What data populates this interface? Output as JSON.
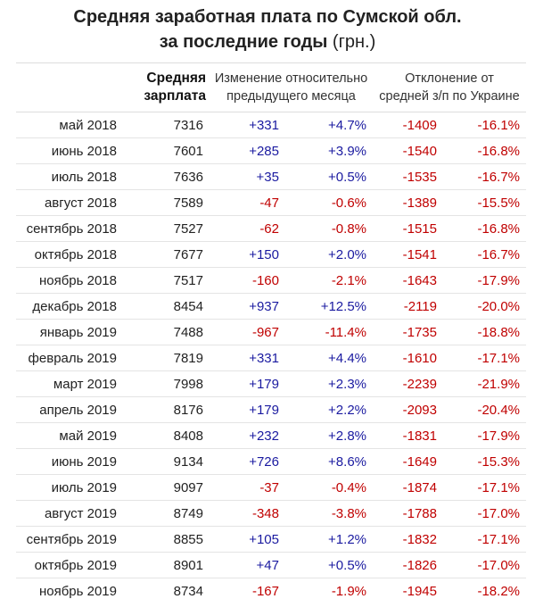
{
  "header": {
    "title": "Средняя заработная плата по Сумской обл.",
    "subtitle": "за последние годы",
    "unit": "(грн.)"
  },
  "table": {
    "columns": [
      [
        "Средняя",
        "зарплата"
      ],
      [
        "Изменение относительно",
        "предыдущего месяца"
      ],
      [
        "Отклонение от",
        "средней з/п по Украине"
      ]
    ],
    "rows": [
      [
        "май 2018",
        "7316",
        "+331",
        "+4.7%",
        "-1409",
        "-16.1%"
      ],
      [
        "июнь 2018",
        "7601",
        "+285",
        "+3.9%",
        "-1540",
        "-16.8%"
      ],
      [
        "июль 2018",
        "7636",
        "+35",
        "+0.5%",
        "-1535",
        "-16.7%"
      ],
      [
        "август 2018",
        "7589",
        "-47",
        "-0.6%",
        "-1389",
        "-15.5%"
      ],
      [
        "сентябрь 2018",
        "7527",
        "-62",
        "-0.8%",
        "-1515",
        "-16.8%"
      ],
      [
        "октябрь 2018",
        "7677",
        "+150",
        "+2.0%",
        "-1541",
        "-16.7%"
      ],
      [
        "ноябрь 2018",
        "7517",
        "-160",
        "-2.1%",
        "-1643",
        "-17.9%"
      ],
      [
        "декабрь 2018",
        "8454",
        "+937",
        "+12.5%",
        "-2119",
        "-20.0%"
      ],
      [
        "январь 2019",
        "7488",
        "-967",
        "-11.4%",
        "-1735",
        "-18.8%"
      ],
      [
        "февраль 2019",
        "7819",
        "+331",
        "+4.4%",
        "-1610",
        "-17.1%"
      ],
      [
        "март 2019",
        "7998",
        "+179",
        "+2.3%",
        "-2239",
        "-21.9%"
      ],
      [
        "апрель 2019",
        "8176",
        "+179",
        "+2.2%",
        "-2093",
        "-20.4%"
      ],
      [
        "май 2019",
        "8408",
        "+232",
        "+2.8%",
        "-1831",
        "-17.9%"
      ],
      [
        "июнь 2019",
        "9134",
        "+726",
        "+8.6%",
        "-1649",
        "-15.3%"
      ],
      [
        "июль 2019",
        "9097",
        "-37",
        "-0.4%",
        "-1874",
        "-17.1%"
      ],
      [
        "август 2019",
        "8749",
        "-348",
        "-3.8%",
        "-1788",
        "-17.0%"
      ],
      [
        "сентябрь 2019",
        "8855",
        "+105",
        "+1.2%",
        "-1832",
        "-17.1%"
      ],
      [
        "октябрь 2019",
        "8901",
        "+47",
        "+0.5%",
        "-1826",
        "-17.0%"
      ],
      [
        "ноябрь 2019",
        "8734",
        "-167",
        "-1.9%",
        "-1945",
        "-18.2%"
      ]
    ]
  }
}
